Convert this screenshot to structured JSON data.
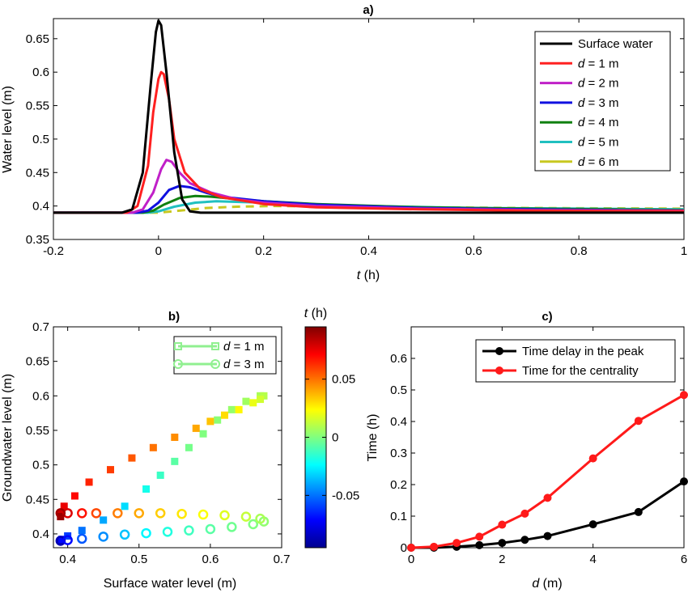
{
  "colors": {
    "surface": "#000000",
    "d1": "#ff2020",
    "d2": "#c020c8",
    "d3": "#1010e0",
    "d4": "#108010",
    "d5": "#20c0c0",
    "d6": "#c8c820",
    "red": "#ff1a1a"
  },
  "chart_data": [
    {
      "id": "a",
      "type": "line",
      "title": "a)",
      "xlabel_var": "t",
      "xlabel_unit": " (h)",
      "ylabel": "Water level (m)",
      "xlim": [
        -0.2,
        1.0
      ],
      "ylim": [
        0.35,
        0.68
      ],
      "xticks": [
        -0.2,
        0,
        0.2,
        0.4,
        0.6,
        0.8,
        1
      ],
      "xtick_labels": [
        "-0.2",
        "0",
        "0.2",
        "0.4",
        "0.6",
        "0.8",
        "1"
      ],
      "yticks": [
        0.35,
        0.4,
        0.45,
        0.5,
        0.55,
        0.6,
        0.65
      ],
      "ytick_labels": [
        "0.35",
        "0.4",
        "0.45",
        "0.5",
        "0.55",
        "0.6",
        "0.65"
      ],
      "legend": {
        "position": "top-right",
        "entries": [
          {
            "label": "Surface water",
            "var": "",
            "value": ""
          },
          {
            "label": "",
            "var": "d",
            "value": " = 1 m"
          },
          {
            "label": "",
            "var": "d",
            "value": " = 2 m"
          },
          {
            "label": "",
            "var": "d",
            "value": " = 3 m"
          },
          {
            "label": "",
            "var": "d",
            "value": " = 4 m"
          },
          {
            "label": "",
            "var": "d",
            "value": " = 5 m"
          },
          {
            "label": "",
            "var": "d",
            "value": " = 6 m"
          }
        ]
      },
      "series": [
        {
          "name": "Surface water",
          "color": "#000000",
          "x": [
            -0.2,
            -0.07,
            -0.05,
            -0.03,
            -0.015,
            -0.005,
            0.0,
            0.005,
            0.015,
            0.03,
            0.045,
            0.06,
            0.08,
            1.0
          ],
          "y": [
            0.39,
            0.39,
            0.395,
            0.45,
            0.58,
            0.66,
            0.677,
            0.67,
            0.6,
            0.48,
            0.41,
            0.392,
            0.39,
            0.39
          ]
        },
        {
          "name": "d = 1 m",
          "color": "#ff2020",
          "x": [
            -0.2,
            -0.06,
            -0.04,
            -0.02,
            -0.01,
            0.0,
            0.005,
            0.01,
            0.02,
            0.03,
            0.05,
            0.08,
            0.12,
            0.2,
            0.3,
            0.5,
            0.7,
            1.0
          ],
          "y": [
            0.39,
            0.39,
            0.4,
            0.46,
            0.54,
            0.59,
            0.6,
            0.597,
            0.56,
            0.5,
            0.45,
            0.425,
            0.413,
            0.403,
            0.398,
            0.395,
            0.393,
            0.392
          ]
        },
        {
          "name": "d = 2 m",
          "color": "#c020c8",
          "x": [
            -0.2,
            -0.05,
            -0.03,
            -0.01,
            0.005,
            0.015,
            0.025,
            0.04,
            0.06,
            0.1,
            0.15,
            0.2,
            0.3,
            0.5,
            0.7,
            1.0
          ],
          "y": [
            0.39,
            0.39,
            0.395,
            0.42,
            0.455,
            0.469,
            0.466,
            0.45,
            0.434,
            0.42,
            0.41,
            0.405,
            0.4,
            0.396,
            0.394,
            0.393
          ]
        },
        {
          "name": "d = 3 m",
          "color": "#1010e0",
          "x": [
            -0.2,
            -0.04,
            -0.02,
            0.0,
            0.02,
            0.04,
            0.06,
            0.09,
            0.12,
            0.2,
            0.3,
            0.5,
            0.7,
            1.0
          ],
          "y": [
            0.39,
            0.39,
            0.393,
            0.405,
            0.424,
            0.43,
            0.428,
            0.42,
            0.414,
            0.407,
            0.402,
            0.397,
            0.395,
            0.393
          ]
        },
        {
          "name": "d = 4 m",
          "color": "#108010",
          "x": [
            -0.2,
            -0.03,
            -0.01,
            0.01,
            0.04,
            0.07,
            0.1,
            0.14,
            0.2,
            0.3,
            0.5,
            0.7,
            1.0
          ],
          "y": [
            0.39,
            0.39,
            0.393,
            0.402,
            0.412,
            0.415,
            0.414,
            0.411,
            0.407,
            0.403,
            0.398,
            0.396,
            0.394
          ]
        },
        {
          "name": "d = 5 m",
          "color": "#20c0c0",
          "x": [
            -0.2,
            -0.02,
            0.0,
            0.03,
            0.07,
            0.11,
            0.16,
            0.25,
            0.4,
            0.6,
            0.8,
            1.0
          ],
          "y": [
            0.39,
            0.39,
            0.392,
            0.399,
            0.405,
            0.407,
            0.406,
            0.404,
            0.4,
            0.397,
            0.396,
            0.395
          ]
        },
        {
          "name": "d = 6 m",
          "color": "#c8c820",
          "dashed": true,
          "x": [
            -0.2,
            0.0,
            0.04,
            0.09,
            0.15,
            0.22,
            0.35,
            0.5,
            0.7,
            1.0
          ],
          "y": [
            0.39,
            0.39,
            0.393,
            0.397,
            0.399,
            0.4,
            0.399,
            0.398,
            0.397,
            0.396
          ]
        }
      ]
    },
    {
      "id": "b",
      "type": "scatter",
      "title": "b)",
      "xlabel": "Surface water level (m)",
      "ylabel": "Groundwater level (m)",
      "xlim": [
        0.38,
        0.7
      ],
      "ylim": [
        0.38,
        0.7
      ],
      "xticks": [
        0.4,
        0.5,
        0.6,
        0.7
      ],
      "xtick_labels": [
        "0.4",
        "0.5",
        "0.6",
        "0.7"
      ],
      "yticks": [
        0.4,
        0.45,
        0.5,
        0.55,
        0.6,
        0.65,
        0.7
      ],
      "ytick_labels": [
        "0.4",
        "0.45",
        "0.5",
        "0.55",
        "0.6",
        "0.65",
        "0.7"
      ],
      "colorbar": {
        "title_var": "t",
        "title_unit": " (h)",
        "range": [
          -0.095,
          0.095
        ],
        "ticks": [
          -0.05,
          0,
          0.05
        ],
        "tick_labels": [
          "-0.05",
          "0",
          "0.05"
        ]
      },
      "legend": {
        "position": "top-right",
        "entries": [
          {
            "var": "d",
            "value": " = 1 m",
            "marker": "square",
            "color": "#90f090"
          },
          {
            "var": "d",
            "value": " = 3 m",
            "marker": "circle",
            "color": "#90f090"
          }
        ]
      },
      "series": [
        {
          "name": "d = 1 m",
          "marker": "square",
          "x": [
            0.39,
            0.392,
            0.4,
            0.42,
            0.45,
            0.48,
            0.51,
            0.53,
            0.55,
            0.57,
            0.59,
            0.61,
            0.63,
            0.65,
            0.67,
            0.675,
            0.67,
            0.66,
            0.64,
            0.62,
            0.6,
            0.58,
            0.55,
            0.52,
            0.49,
            0.46,
            0.43,
            0.41,
            0.395,
            0.39,
            0.39
          ],
          "y": [
            0.39,
            0.392,
            0.397,
            0.405,
            0.42,
            0.44,
            0.465,
            0.485,
            0.505,
            0.525,
            0.545,
            0.565,
            0.58,
            0.592,
            0.6,
            0.6,
            0.595,
            0.59,
            0.58,
            0.572,
            0.563,
            0.553,
            0.54,
            0.525,
            0.51,
            0.493,
            0.475,
            0.455,
            0.44,
            0.43,
            0.425
          ],
          "t": [
            -0.085,
            -0.07,
            -0.06,
            -0.05,
            -0.04,
            -0.03,
            -0.02,
            -0.013,
            -0.007,
            -0.002,
            0.0,
            0.002,
            0.004,
            0.006,
            0.008,
            0.01,
            0.015,
            0.02,
            0.025,
            0.03,
            0.035,
            0.04,
            0.045,
            0.05,
            0.055,
            0.06,
            0.065,
            0.07,
            0.075,
            0.08,
            0.09
          ]
        },
        {
          "name": "d = 3 m",
          "marker": "circle",
          "x": [
            0.39,
            0.4,
            0.42,
            0.45,
            0.48,
            0.51,
            0.54,
            0.57,
            0.6,
            0.63,
            0.66,
            0.675,
            0.67,
            0.65,
            0.62,
            0.59,
            0.56,
            0.53,
            0.5,
            0.47,
            0.44,
            0.42,
            0.4,
            0.39
          ],
          "y": [
            0.39,
            0.391,
            0.393,
            0.396,
            0.399,
            0.401,
            0.403,
            0.405,
            0.407,
            0.41,
            0.414,
            0.418,
            0.422,
            0.425,
            0.427,
            0.428,
            0.429,
            0.43,
            0.43,
            0.43,
            0.43,
            0.43,
            0.43,
            0.43
          ],
          "t": [
            -0.085,
            -0.07,
            -0.055,
            -0.045,
            -0.035,
            -0.025,
            -0.018,
            -0.012,
            -0.007,
            -0.003,
            0.0,
            0.003,
            0.008,
            0.013,
            0.018,
            0.023,
            0.028,
            0.033,
            0.04,
            0.048,
            0.058,
            0.068,
            0.078,
            0.088
          ]
        }
      ]
    },
    {
      "id": "c",
      "type": "line",
      "title": "c)",
      "xlabel_var": "d",
      "xlabel_unit": " (m)",
      "ylabel": "Time (h)",
      "xlim": [
        0,
        6
      ],
      "ylim": [
        0,
        0.7
      ],
      "xticks": [
        0,
        2,
        4,
        6
      ],
      "xtick_labels": [
        "0",
        "2",
        "4",
        "6"
      ],
      "yticks": [
        0,
        0.1,
        0.2,
        0.3,
        0.4,
        0.5,
        0.6
      ],
      "ytick_labels": [
        "0",
        "0.1",
        "0.2",
        "0.3",
        "0.4",
        "0.5",
        "0.6"
      ],
      "legend": {
        "position": "top-right",
        "entries": [
          {
            "label": "Time delay in the peak"
          },
          {
            "label": "Time for the centrality"
          }
        ]
      },
      "series": [
        {
          "name": "Time delay in the peak",
          "color": "#000000",
          "x": [
            0,
            0.5,
            1,
            1.5,
            2,
            2.5,
            3,
            4,
            5,
            6
          ],
          "y": [
            0.0,
            0.0,
            0.003,
            0.008,
            0.015,
            0.025,
            0.037,
            0.074,
            0.113,
            0.21
          ]
        },
        {
          "name": "Time for the centrality",
          "color": "#ff1a1a",
          "x": [
            0,
            0.5,
            1,
            1.5,
            2,
            2.5,
            3,
            4,
            5,
            6
          ],
          "y": [
            0.0,
            0.003,
            0.015,
            0.035,
            0.073,
            0.108,
            0.158,
            0.283,
            0.402,
            0.484
          ]
        }
      ]
    }
  ]
}
